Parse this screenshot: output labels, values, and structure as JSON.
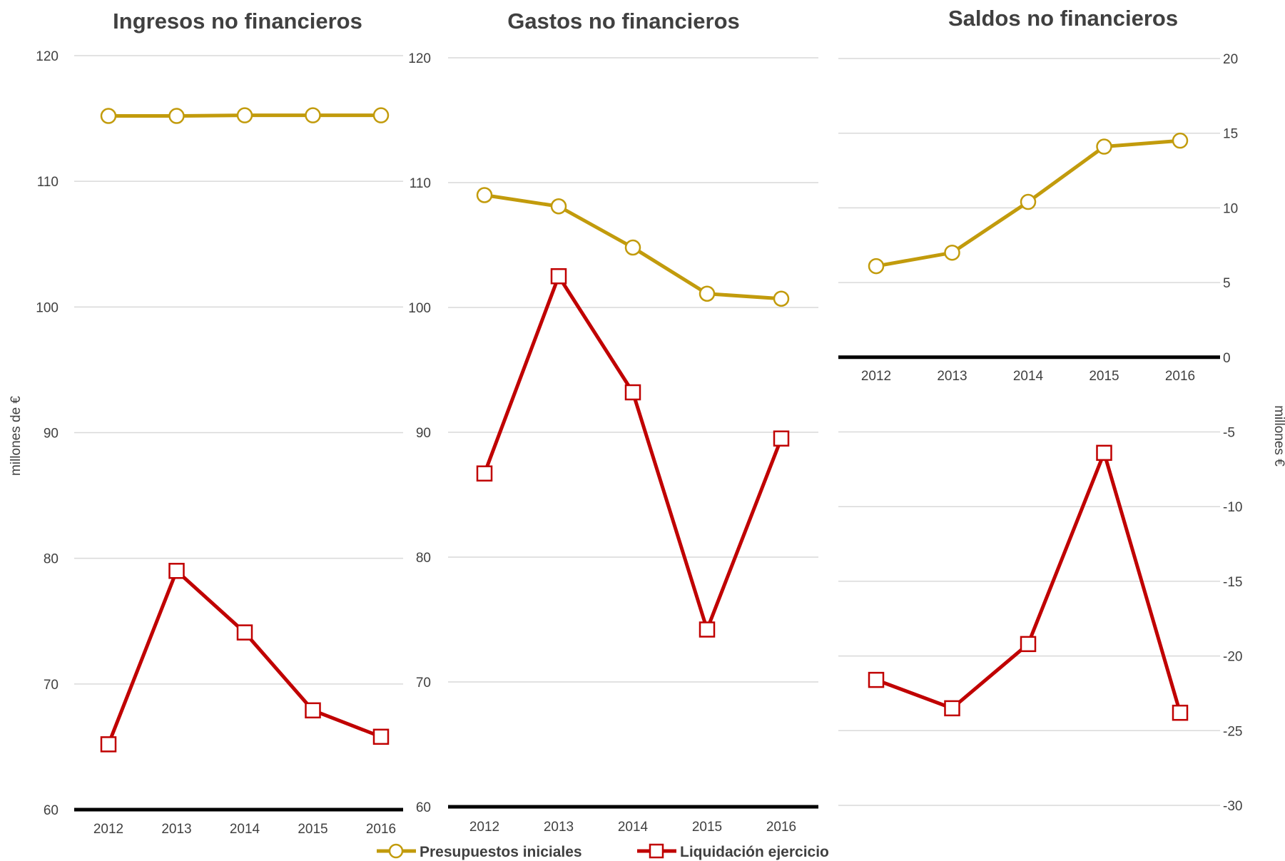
{
  "colors": {
    "presupuestos": "#c29b0c",
    "liquidacion": "#c00000",
    "grid": "#d9d9d9",
    "baseline": "#000000",
    "text": "#404040"
  },
  "chart_data": [
    {
      "type": "line",
      "title": "Ingresos no financieros",
      "ylabel": "millones de €",
      "ylim": [
        60,
        120
      ],
      "yticks": [
        60,
        70,
        80,
        90,
        100,
        110,
        120
      ],
      "categories": [
        "2012",
        "2013",
        "2014",
        "2015",
        "2016"
      ],
      "series": [
        {
          "name": "Presupuestos iniciales",
          "values": [
            115.2,
            115.2,
            115.25,
            115.25,
            115.25
          ]
        },
        {
          "name": "Liquidación ejercicio",
          "values": [
            65.2,
            79.0,
            74.1,
            67.9,
            65.8
          ]
        }
      ],
      "grid": true
    },
    {
      "type": "line",
      "title": "Gastos no financieros",
      "ylim": [
        60,
        120
      ],
      "yticks": [
        60,
        70,
        80,
        90,
        100,
        110,
        120
      ],
      "categories": [
        "2012",
        "2013",
        "2014",
        "2015",
        "2016"
      ],
      "series": [
        {
          "name": "Presupuestos iniciales",
          "values": [
            109.0,
            108.1,
            104.8,
            101.1,
            100.7
          ]
        },
        {
          "name": "Liquidación ejercicio",
          "values": [
            86.7,
            102.5,
            93.2,
            74.2,
            89.5
          ]
        }
      ],
      "grid": true
    },
    {
      "type": "line",
      "title": "Saldos no financieros",
      "ylabel": "millones €",
      "ylim": [
        -30,
        20
      ],
      "yticks": [
        -30,
        -25,
        -20,
        -15,
        -10,
        -5,
        0,
        5,
        10,
        15,
        20
      ],
      "categories": [
        "2012",
        "2013",
        "2014",
        "2015",
        "2016"
      ],
      "series": [
        {
          "name": "Presupuestos iniciales",
          "values": [
            6.1,
            7.0,
            10.4,
            14.1,
            14.5
          ]
        },
        {
          "name": "Liquidación ejercicio",
          "values": [
            -21.6,
            -23.5,
            -19.2,
            -6.4,
            -23.8
          ]
        }
      ],
      "grid": true
    }
  ],
  "legend": {
    "items": [
      {
        "label": "Presupuestos iniciales",
        "marker": "circle"
      },
      {
        "label": "Liquidación ejercicio",
        "marker": "square"
      }
    ]
  }
}
